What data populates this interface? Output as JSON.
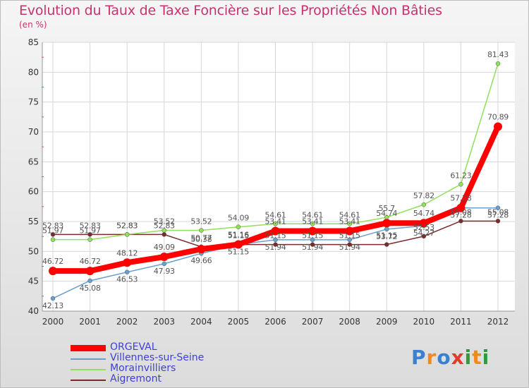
{
  "title": "Evolution du Taux de Taxe Foncière sur les Propriétés Non Bâties",
  "subtitle": "(en %)",
  "logo_text": "Proxiti",
  "colors": {
    "ORGEVAL": "#ff0000",
    "Villennes-sur-Seine": "#6b9ecf",
    "Morainvilliers": "#8fe05a",
    "Aigremont": "#7a2b2b",
    "title": "#c8336e",
    "legend_text": "#3f3fd6"
  },
  "chart_data": {
    "type": "line",
    "title": "Evolution du Taux de Taxe Foncière sur les Propriétés Non Bâties",
    "ylabel": "(en %)",
    "xlabel": "",
    "categories": [
      "2000",
      "2001",
      "2002",
      "2003",
      "2004",
      "2005",
      "2006",
      "2007",
      "2008",
      "2009",
      "2010",
      "2011",
      "2012"
    ],
    "ylim": [
      40,
      85
    ],
    "yticks": [
      40,
      45,
      50,
      55,
      60,
      65,
      70,
      75,
      80,
      85
    ],
    "grid": true,
    "series": [
      {
        "name": "ORGEVAL",
        "color": "#ff0000",
        "values": [
          46.72,
          46.72,
          48.12,
          49.09,
          50.38,
          51.16,
          53.41,
          53.41,
          53.41,
          54.74,
          54.74,
          57.28,
          70.89
        ],
        "labels": [
          "46.72",
          "46.72",
          "48.12",
          "49.09",
          "50.38",
          "51.16",
          "53.41",
          "53.41",
          "53.41",
          "54.74",
          "54.74",
          "57.28",
          "70.89"
        ]
      },
      {
        "name": "Villennes-sur-Seine",
        "color": "#6b9ecf",
        "values": [
          42.13,
          45.08,
          46.53,
          47.93,
          49.66,
          51.15,
          51.94,
          51.94,
          51.94,
          53.72,
          54.27,
          57.28,
          57.28
        ],
        "labels": [
          "42.13",
          "45.08",
          "46.53",
          "47.93",
          "49.66",
          "51.15",
          "51.94",
          "51.94",
          "51.94",
          "53.72",
          "54.27",
          "57.28",
          "57.28"
        ]
      },
      {
        "name": "Morainvilliers",
        "color": "#8fe05a",
        "values": [
          51.97,
          51.97,
          52.83,
          53.52,
          53.52,
          54.09,
          54.61,
          54.61,
          54.61,
          55.7,
          57.82,
          61.23,
          81.43
        ],
        "labels": [
          "51.97",
          "51.97",
          "52.83",
          "53.52",
          "53.52",
          "54.09",
          "54.61",
          "54.61",
          "54.61",
          "55.7",
          "57.82",
          "61.23",
          "81.43"
        ]
      },
      {
        "name": "Aigremont",
        "color": "#7a2b2b",
        "values": [
          52.83,
          52.83,
          52.83,
          52.83,
          50.77,
          51.15,
          51.15,
          51.15,
          51.15,
          51.15,
          52.53,
          55.08,
          55.08
        ],
        "labels": [
          "52.83",
          "52.83",
          "52.83",
          "52.83",
          "50.77",
          "51.15",
          "51.15",
          "51.15",
          "51.15",
          "51.15",
          "52.53",
          "55.08",
          "55.08"
        ]
      }
    ]
  }
}
